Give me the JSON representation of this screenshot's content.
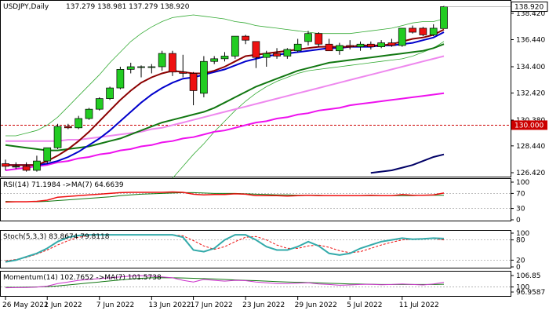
{
  "header": {
    "symbol": "USDJPY,Daily",
    "ohlc": "137.279 138.981 137.279 138.920"
  },
  "price_axis": {
    "ticks": [
      "138.420",
      "136.440",
      "134.400",
      "132.420",
      "130.380",
      "128.440",
      "126.420"
    ],
    "current_price": "138.920",
    "level_price": "130.000"
  },
  "indicators": {
    "rsi": {
      "label": "RSI(14) 71.1984 ->MA(7) 64.6639",
      "ticks": [
        "100",
        "70",
        "30",
        "0"
      ]
    },
    "stoch": {
      "label": "Stoch(5,3,3) 83.8674 79.8118",
      "ticks": [
        "100",
        "80",
        "20",
        "0"
      ]
    },
    "momentum": {
      "label": "Momentum(14) 102.7652 ->MA(7) 101.5738",
      "ticks": [
        "106.85",
        "100",
        "96.9587"
      ]
    }
  },
  "date_axis": {
    "labels": [
      "26 May 2022",
      "1 Jun 2022",
      "7 Jun 2022",
      "13 Jun 2022",
      "17 Jun 2022",
      "23 Jun 2022",
      "29 Jun 2022",
      "5 Jul 2022",
      "11 Jul 2022"
    ]
  },
  "colors": {
    "bull": "#22cc22",
    "bear": "#ee1111",
    "sma_fast": "#8b0000",
    "sma_mid": "#0000cc",
    "sma_slow": "#117711",
    "ma_pink": "#ee88ee",
    "ma_magenta": "#ee11ee",
    "ma_navy": "#000066",
    "bollinger": "#33aa33",
    "level": "#cc0000"
  },
  "chart_data": {
    "type": "candlestick",
    "candles": [
      {
        "o": 127.1,
        "h": 127.4,
        "l": 126.6,
        "c": 126.9
      },
      {
        "o": 126.9,
        "h": 127.2,
        "l": 126.7,
        "c": 126.9
      },
      {
        "o": 126.9,
        "h": 127.2,
        "l": 126.5,
        "c": 126.6
      },
      {
        "o": 126.6,
        "h": 127.7,
        "l": 126.5,
        "c": 127.3
      },
      {
        "o": 127.3,
        "h": 128.2,
        "l": 127.1,
        "c": 128.3
      },
      {
        "o": 128.3,
        "h": 130.1,
        "l": 128.2,
        "c": 129.9
      },
      {
        "o": 129.9,
        "h": 130.1,
        "l": 129.7,
        "c": 129.8
      },
      {
        "o": 129.8,
        "h": 130.7,
        "l": 129.7,
        "c": 130.5
      },
      {
        "o": 130.5,
        "h": 131.3,
        "l": 130.4,
        "c": 131.2
      },
      {
        "o": 131.2,
        "h": 132.1,
        "l": 131.1,
        "c": 132.0
      },
      {
        "o": 132.0,
        "h": 132.9,
        "l": 131.9,
        "c": 132.8
      },
      {
        "o": 132.8,
        "h": 134.4,
        "l": 132.7,
        "c": 134.2
      },
      {
        "o": 134.2,
        "h": 134.7,
        "l": 133.9,
        "c": 134.4
      },
      {
        "o": 134.4,
        "h": 134.5,
        "l": 133.6,
        "c": 134.4
      },
      {
        "o": 134.4,
        "h": 134.6,
        "l": 133.9,
        "c": 134.4
      },
      {
        "o": 134.4,
        "h": 135.6,
        "l": 134.1,
        "c": 135.4
      },
      {
        "o": 135.4,
        "h": 135.6,
        "l": 133.7,
        "c": 134.0
      },
      {
        "o": 134.0,
        "h": 135.3,
        "l": 133.6,
        "c": 133.9
      },
      {
        "o": 133.9,
        "h": 134.0,
        "l": 131.5,
        "c": 132.6
      },
      {
        "o": 132.4,
        "h": 135.2,
        "l": 132.1,
        "c": 134.8
      },
      {
        "o": 134.8,
        "h": 135.2,
        "l": 134.6,
        "c": 135.0
      },
      {
        "o": 135.0,
        "h": 135.5,
        "l": 134.8,
        "c": 135.2
      },
      {
        "o": 135.2,
        "h": 136.7,
        "l": 135.0,
        "c": 136.7
      },
      {
        "o": 136.7,
        "h": 136.8,
        "l": 136.1,
        "c": 136.4
      },
      {
        "o": 136.3,
        "h": 136.3,
        "l": 134.3,
        "c": 135.1
      },
      {
        "o": 135.1,
        "h": 135.6,
        "l": 134.4,
        "c": 135.4
      },
      {
        "o": 135.4,
        "h": 135.8,
        "l": 135.0,
        "c": 135.2
      },
      {
        "o": 135.2,
        "h": 135.8,
        "l": 135.0,
        "c": 135.7
      },
      {
        "o": 135.6,
        "h": 136.5,
        "l": 135.5,
        "c": 136.1
      },
      {
        "o": 136.3,
        "h": 137.1,
        "l": 136.0,
        "c": 136.9
      },
      {
        "o": 136.9,
        "h": 137.0,
        "l": 135.9,
        "c": 136.1
      },
      {
        "o": 136.1,
        "h": 136.5,
        "l": 135.6,
        "c": 135.6
      },
      {
        "o": 135.6,
        "h": 136.2,
        "l": 135.3,
        "c": 136.0
      },
      {
        "o": 136.0,
        "h": 136.4,
        "l": 135.7,
        "c": 135.9
      },
      {
        "o": 135.9,
        "h": 136.3,
        "l": 135.6,
        "c": 136.1
      },
      {
        "o": 136.1,
        "h": 136.3,
        "l": 135.7,
        "c": 135.9
      },
      {
        "o": 135.9,
        "h": 136.4,
        "l": 135.8,
        "c": 136.2
      },
      {
        "o": 136.2,
        "h": 136.5,
        "l": 135.9,
        "c": 136.0
      },
      {
        "o": 136.0,
        "h": 137.3,
        "l": 135.9,
        "c": 137.3
      },
      {
        "o": 137.3,
        "h": 137.5,
        "l": 136.9,
        "c": 137.0
      },
      {
        "o": 137.3,
        "h": 137.4,
        "l": 136.7,
        "c": 136.8
      },
      {
        "o": 136.8,
        "h": 137.6,
        "l": 136.7,
        "c": 137.3
      },
      {
        "o": 137.279,
        "h": 138.981,
        "l": 137.279,
        "c": 138.92
      }
    ],
    "overlays": {
      "sma_fast": [
        127.0,
        127.0,
        127.0,
        127.0,
        127.3,
        127.7,
        128.2,
        128.8,
        129.5,
        130.3,
        131.1,
        131.9,
        132.6,
        133.2,
        133.6,
        133.9,
        134.1,
        134.0,
        133.9,
        133.9,
        134.1,
        134.4,
        134.8,
        135.2,
        135.3,
        135.4,
        135.5,
        135.6,
        135.7,
        135.8,
        135.9,
        135.9,
        135.9,
        135.9,
        136.0,
        136.0,
        136.0,
        136.1,
        136.3,
        136.5,
        136.6,
        136.8,
        137.2
      ],
      "sma_mid": [
        127.0,
        127.0,
        127.0,
        127.0,
        127.1,
        127.3,
        127.6,
        128.0,
        128.5,
        129.0,
        129.6,
        130.3,
        131.0,
        131.7,
        132.3,
        132.8,
        133.2,
        133.5,
        133.6,
        133.8,
        134.0,
        134.2,
        134.5,
        134.8,
        135.0,
        135.2,
        135.3,
        135.4,
        135.5,
        135.6,
        135.7,
        135.8,
        135.8,
        135.9,
        135.9,
        135.9,
        136.0,
        136.0,
        136.1,
        136.2,
        136.4,
        136.6,
        137.0
      ],
      "sma_slow": [
        128.5,
        128.4,
        128.3,
        128.2,
        128.1,
        128.1,
        128.2,
        128.3,
        128.4,
        128.6,
        128.8,
        129.0,
        129.3,
        129.6,
        129.9,
        130.2,
        130.4,
        130.6,
        130.8,
        131.0,
        131.3,
        131.7,
        132.1,
        132.5,
        132.9,
        133.2,
        133.5,
        133.8,
        134.1,
        134.3,
        134.5,
        134.7,
        134.8,
        134.9,
        135.0,
        135.1,
        135.2,
        135.3,
        135.4,
        135.5,
        135.6,
        135.8,
        136.1
      ],
      "ma_pink": [
        128.8,
        128.8,
        128.8,
        128.8,
        128.8,
        128.8,
        128.9,
        128.9,
        129.0,
        129.1,
        129.2,
        129.3,
        129.4,
        129.5,
        129.7,
        129.8,
        130.0,
        130.2,
        130.4,
        130.6,
        130.8,
        131.0,
        131.2,
        131.4,
        131.6,
        131.8,
        132.0,
        132.2,
        132.4,
        132.6,
        132.8,
        133.0,
        133.2,
        133.4,
        133.6,
        133.8,
        134.0,
        134.2,
        134.4,
        134.6,
        134.8,
        135.0,
        135.2
      ],
      "ma_magenta": [
        126.6,
        126.7,
        126.8,
        126.9,
        127.0,
        127.2,
        127.3,
        127.5,
        127.6,
        127.8,
        127.9,
        128.1,
        128.2,
        128.4,
        128.5,
        128.7,
        128.8,
        129.0,
        129.1,
        129.3,
        129.5,
        129.6,
        129.8,
        130.0,
        130.2,
        130.3,
        130.5,
        130.6,
        130.8,
        130.9,
        131.1,
        131.2,
        131.3,
        131.5,
        131.6,
        131.7,
        131.8,
        131.9,
        132.0,
        132.1,
        132.2,
        132.3,
        132.4
      ],
      "ma_navy": [
        null,
        null,
        null,
        null,
        null,
        null,
        null,
        null,
        null,
        null,
        null,
        null,
        null,
        null,
        null,
        null,
        null,
        null,
        null,
        null,
        null,
        null,
        null,
        null,
        null,
        null,
        null,
        null,
        null,
        null,
        null,
        null,
        null,
        null,
        null,
        126.4,
        126.5,
        126.6,
        126.8,
        127.0,
        127.3,
        127.6,
        127.8
      ],
      "bb_upper": [
        129.2,
        129.2,
        129.4,
        129.6,
        130.0,
        130.6,
        131.4,
        132.2,
        133.0,
        133.8,
        134.7,
        135.5,
        136.3,
        136.9,
        137.4,
        137.8,
        138.1,
        138.2,
        138.3,
        138.2,
        138.1,
        138.0,
        137.8,
        137.7,
        137.5,
        137.4,
        137.3,
        137.2,
        137.1,
        137.0,
        136.9,
        136.9,
        136.9,
        136.9,
        137.0,
        137.1,
        137.2,
        137.3,
        137.5,
        137.7,
        137.8,
        137.8,
        138.0
      ],
      "bb_lower": [
        null,
        null,
        null,
        null,
        null,
        null,
        null,
        null,
        null,
        null,
        null,
        null,
        null,
        null,
        null,
        null,
        126.0,
        126.9,
        127.8,
        128.6,
        129.5,
        130.3,
        131.1,
        131.8,
        132.4,
        132.9,
        133.3,
        133.6,
        133.9,
        134.1,
        134.2,
        134.3,
        134.4,
        134.5,
        134.6,
        134.7,
        134.8,
        134.9,
        135.0,
        135.2,
        135.5,
        135.8,
        136.3
      ],
      "level": 130.0
    },
    "rsi": {
      "line": [
        47,
        48,
        48,
        49,
        52,
        60,
        62,
        64,
        66,
        68,
        70,
        72,
        73,
        73,
        73,
        73,
        74,
        73,
        68,
        66,
        67,
        67,
        69,
        68,
        64,
        64,
        64,
        63,
        64,
        65,
        64,
        64,
        64,
        64,
        64,
        65,
        64,
        64,
        67,
        65,
        65,
        66,
        71
      ],
      "ma": [
        49,
        48,
        48,
        48,
        49,
        51,
        53,
        55,
        57,
        59,
        61,
        64,
        66,
        68,
        69,
        70,
        71,
        72,
        72,
        71,
        70,
        70,
        70,
        69,
        68,
        67,
        66,
        66,
        65,
        65,
        65,
        64,
        64,
        64,
        64,
        64,
        64,
        64,
        64,
        64,
        65,
        65,
        65
      ]
    },
    "stoch": {
      "k": [
        15,
        20,
        30,
        40,
        55,
        75,
        88,
        93,
        95,
        95,
        95,
        95,
        95,
        95,
        95,
        95,
        95,
        88,
        50,
        45,
        55,
        80,
        95,
        95,
        80,
        60,
        50,
        50,
        60,
        75,
        62,
        40,
        35,
        40,
        55,
        65,
        75,
        80,
        85,
        82,
        83,
        85,
        84
      ],
      "d": [
        18,
        22,
        28,
        38,
        50,
        65,
        78,
        88,
        93,
        95,
        95,
        95,
        95,
        95,
        95,
        95,
        95,
        92,
        78,
        62,
        52,
        60,
        75,
        88,
        90,
        80,
        65,
        55,
        55,
        62,
        65,
        58,
        48,
        42,
        45,
        55,
        65,
        73,
        80,
        82,
        83,
        84,
        80
      ]
    },
    "momentum": {
      "line": [
        99.5,
        99.6,
        99.7,
        99.9,
        100.5,
        102.0,
        103.0,
        104.0,
        104.5,
        105.0,
        105.5,
        106.0,
        106.5,
        106.8,
        106.5,
        106.0,
        105.5,
        104.0,
        103.0,
        104.5,
        104.0,
        103.5,
        104.0,
        103.8,
        103.0,
        102.5,
        102.0,
        102.0,
        102.3,
        102.5,
        101.8,
        101.5,
        101.0,
        101.2,
        101.5,
        101.6,
        101.3,
        101.5,
        101.8,
        101.5,
        101.2,
        101.8,
        102.8
      ],
      "ma": [
        99.8,
        99.8,
        99.9,
        100.0,
        100.2,
        100.6,
        101.2,
        101.8,
        102.4,
        103.0,
        103.6,
        104.2,
        104.8,
        105.2,
        105.5,
        105.6,
        105.5,
        105.4,
        105.2,
        105.0,
        104.8,
        104.5,
        104.2,
        104.0,
        103.8,
        103.5,
        103.2,
        103.0,
        102.8,
        102.6,
        102.4,
        102.2,
        102.0,
        101.8,
        101.7,
        101.6,
        101.5,
        101.5,
        101.5,
        101.5,
        101.5,
        101.5,
        101.6
      ]
    }
  }
}
